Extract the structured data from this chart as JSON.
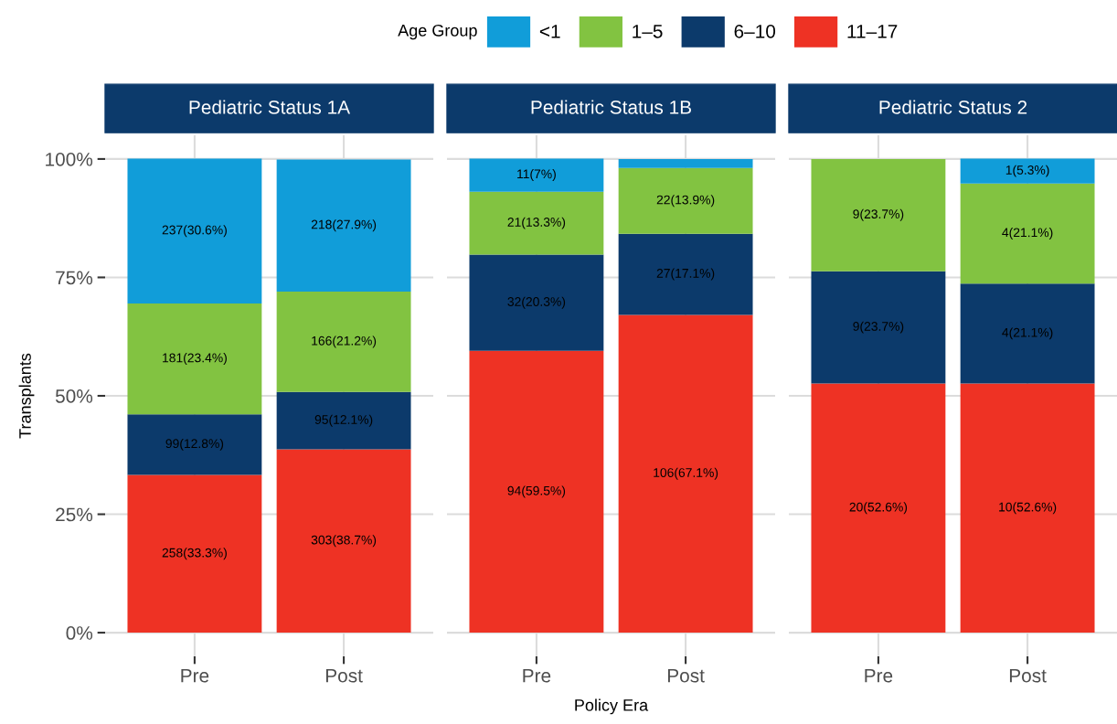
{
  "chart_data": [
    {
      "type": "bar",
      "title": "Pediatric Status 1A",
      "ylabel": "Transplants",
      "legend_title": "Age Group",
      "legend": "top",
      "stacked": true,
      "grid": true,
      "categories": [
        "Pre",
        "Post"
      ],
      "ylim": [
        -5,
        105
      ],
      "yticks": [
        {
          "value": 0,
          "label": "0%"
        },
        {
          "value": 25,
          "label": "25%"
        },
        {
          "value": 50,
          "label": "50%"
        },
        {
          "value": 75,
          "label": "75%"
        },
        {
          "value": 100,
          "label": "100%"
        }
      ],
      "series": [
        {
          "name": "11–17",
          "color": "#ee3224",
          "values": [
            33.3,
            38.7
          ],
          "value_labels": [
            "258(33.3%)",
            "303(38.7%)"
          ]
        },
        {
          "name": "6–10",
          "color": "#0c3a6b",
          "values": [
            12.8,
            12.1
          ],
          "value_labels": [
            "99(12.8%)",
            "95(12.1%)"
          ]
        },
        {
          "name": "1–5",
          "color": "#82c341",
          "values": [
            23.4,
            21.2
          ],
          "value_labels": [
            "181(23.4%)",
            "166(21.2%)"
          ]
        },
        {
          "name": "<1",
          "color": "#119dd9",
          "values": [
            30.6,
            27.9
          ],
          "value_labels": [
            "237(30.6%)",
            "218(27.9%)"
          ]
        }
      ]
    },
    {
      "type": "bar",
      "title": "Pediatric Status 1B",
      "xlabel": "Policy Era",
      "stacked": true,
      "grid": true,
      "tick_labels": "x",
      "categories": [
        "Pre",
        "Post"
      ],
      "ylim": [
        -5,
        105
      ],
      "yticks": [
        {
          "value": 0,
          "label": null
        },
        {
          "value": 25,
          "label": null
        },
        {
          "value": 50,
          "label": null
        },
        {
          "value": 75,
          "label": null
        },
        {
          "value": 100,
          "label": null
        }
      ],
      "series": [
        {
          "color": "#ee3224",
          "values": [
            59.5,
            67.1
          ],
          "value_labels": [
            "94(59.5%)",
            "106(67.1%)"
          ]
        },
        {
          "color": "#0c3a6b",
          "values": [
            20.3,
            17.1
          ],
          "value_labels": [
            "32(20.3%)",
            "27(17.1%)"
          ]
        },
        {
          "color": "#82c341",
          "values": [
            13.3,
            13.9
          ],
          "value_labels": [
            "21(13.3%)",
            "22(13.9%)"
          ]
        },
        {
          "color": "#119dd9",
          "values": [
            7,
            1.9
          ],
          "value_labels": [
            "11(7%)",
            null
          ]
        }
      ]
    },
    {
      "type": "bar",
      "title": "Pediatric Status 2",
      "stacked": true,
      "grid": true,
      "tick_labels": "x",
      "categories": [
        "Pre",
        "Post"
      ],
      "ylim": [
        -5,
        105
      ],
      "yticks": [
        {
          "value": 0,
          "label": null
        },
        {
          "value": 25,
          "label": null
        },
        {
          "value": 50,
          "label": null
        },
        {
          "value": 75,
          "label": null
        },
        {
          "value": 100,
          "label": null
        }
      ],
      "series": [
        {
          "color": "#ee3224",
          "values": [
            52.6,
            52.6
          ],
          "value_labels": [
            "20(52.6%)",
            "10(52.6%)"
          ]
        },
        {
          "color": "#0c3a6b",
          "values": [
            23.7,
            21.1
          ],
          "value_labels": [
            "9(23.7%)",
            "4(21.1%)"
          ]
        },
        {
          "color": "#82c341",
          "values": [
            23.7,
            21.1
          ],
          "value_labels": [
            "9(23.7%)",
            "4(21.1%)"
          ]
        },
        {
          "color": "#119dd9",
          "values": [
            null,
            5.3
          ],
          "value_labels": [
            null,
            "1(5.3%)"
          ]
        }
      ]
    }
  ]
}
